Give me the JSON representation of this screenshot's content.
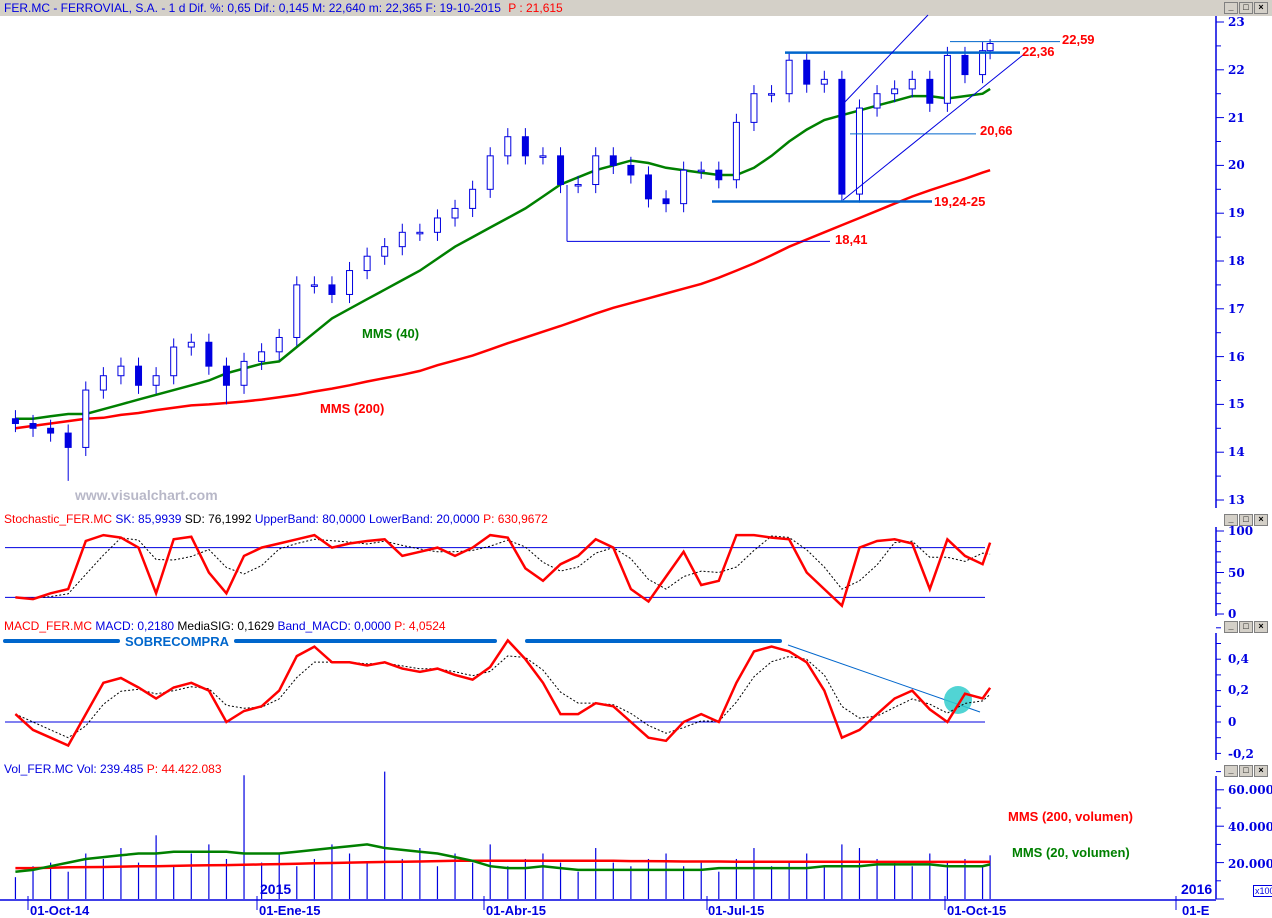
{
  "header": {
    "title": "FER.MC - FERROVIAL, S.A. - 1 d Dif. %: 0,65 Dif.: 0,145 M: 22,640 m: 22,365 F: 19-10-2015",
    "price": "P : 21,615"
  },
  "watermark": "www.visualchart.com",
  "stochastic": {
    "name": "Stochastic_FER.MC",
    "sk": "SK: 85,9939",
    "sd": "SD: 76,1992",
    "upper": "UpperBand: 80,0000",
    "lower": "LowerBand: 20,0000",
    "p": "P: 630,9672"
  },
  "macd": {
    "name": "MACD_FER.MC",
    "macd": "MACD: 0,2180",
    "signal": "MediaSIG: 0,1629",
    "band": "Band_MACD: 0,0000",
    "p": "P: 4,0524",
    "annotation": "SOBRECOMPRA"
  },
  "volume": {
    "name": "Vol_FER.MC",
    "vol": "Vol: 239.485",
    "p": "P: 44.422.083",
    "ma200_label": "MMS (200, volumen)",
    "ma20_label": "MMS (20, volumen)",
    "multiplier": "x100"
  },
  "annotations": {
    "mms40": "MMS (40)",
    "mms200": "MMS (200)",
    "levels": [
      "22,59",
      "22,36",
      "20,66",
      "19,24-25",
      "18,41"
    ]
  },
  "axes": {
    "price_ticks": [
      "23",
      "22",
      "21",
      "20",
      "19",
      "18",
      "17",
      "16",
      "15",
      "14",
      "13"
    ],
    "stoch_ticks": [
      "100",
      "50",
      "0"
    ],
    "macd_ticks": [
      "0,4",
      "0,2",
      "0",
      "-0,2"
    ],
    "vol_ticks": [
      "60.000",
      "40.000",
      "20.000"
    ],
    "x_ticks": [
      "01-Oct-14",
      "01-Ene-15",
      "01-Abr-15",
      "01-Jul-15",
      "01-Oct-15",
      "01-E"
    ],
    "years": [
      "2015",
      "2016"
    ]
  },
  "colors": {
    "candle": "#0000e0",
    "mms40": "#008000",
    "mms200": "#ff0000",
    "annot": "#0066cc",
    "highlight": "#33cccc"
  },
  "chart_data": [
    {
      "type": "candlestick",
      "title": "FER.MC - FERROVIAL, S.A.",
      "ylim": [
        13,
        23
      ],
      "dates": [
        "2014-09-26",
        "2014-10-03",
        "2014-10-10",
        "2014-10-17",
        "2014-10-24",
        "2014-10-31",
        "2014-11-07",
        "2014-11-14",
        "2014-11-21",
        "2014-11-28",
        "2014-12-05",
        "2014-12-12",
        "2014-12-19",
        "2014-12-26",
        "2015-01-02",
        "2015-01-09",
        "2015-01-16",
        "2015-01-23",
        "2015-01-30",
        "2015-02-06",
        "2015-02-13",
        "2015-02-20",
        "2015-02-27",
        "2015-03-06",
        "2015-03-13",
        "2015-03-20",
        "2015-03-27",
        "2015-04-03",
        "2015-04-10",
        "2015-04-17",
        "2015-04-24",
        "2015-05-01",
        "2015-05-08",
        "2015-05-15",
        "2015-05-22",
        "2015-05-29",
        "2015-06-05",
        "2015-06-12",
        "2015-06-19",
        "2015-06-26",
        "2015-07-03",
        "2015-07-10",
        "2015-07-17",
        "2015-07-24",
        "2015-07-31",
        "2015-08-07",
        "2015-08-14",
        "2015-08-21",
        "2015-08-28",
        "2015-09-04",
        "2015-09-11",
        "2015-09-18",
        "2015-09-25",
        "2015-10-02",
        "2015-10-09",
        "2015-10-16",
        "2015-10-19"
      ],
      "close": [
        14.6,
        14.5,
        14.4,
        14.1,
        15.3,
        15.6,
        15.8,
        15.4,
        15.6,
        16.2,
        16.3,
        15.8,
        15.4,
        15.9,
        16.1,
        16.4,
        17.5,
        17.5,
        17.3,
        17.8,
        18.1,
        18.3,
        18.6,
        18.6,
        18.9,
        19.1,
        19.5,
        20.2,
        20.6,
        20.2,
        20.2,
        19.6,
        19.6,
        20.2,
        20.0,
        19.8,
        19.3,
        19.2,
        19.9,
        19.9,
        19.7,
        20.9,
        21.5,
        21.5,
        22.2,
        21.7,
        21.8,
        19.4,
        21.2,
        21.5,
        21.6,
        21.8,
        21.3,
        22.3,
        21.9,
        22.4,
        22.55
      ],
      "series": [
        {
          "name": "MMS (40)",
          "values": [
            14.7,
            14.7,
            14.75,
            14.8,
            14.8,
            14.9,
            15.0,
            15.1,
            15.2,
            15.3,
            15.4,
            15.5,
            15.65,
            15.75,
            15.85,
            15.9,
            16.2,
            16.5,
            16.8,
            17.0,
            17.2,
            17.4,
            17.6,
            17.8,
            18.05,
            18.3,
            18.5,
            18.7,
            18.9,
            19.1,
            19.35,
            19.6,
            19.75,
            19.9,
            20.0,
            20.1,
            20.05,
            19.95,
            19.9,
            19.85,
            19.8,
            19.8,
            19.95,
            20.2,
            20.5,
            20.75,
            20.95,
            21.05,
            21.15,
            21.25,
            21.35,
            21.45,
            21.45,
            21.4,
            21.45,
            21.5,
            21.6
          ]
        },
        {
          "name": "MMS (200)",
          "values": [
            14.5,
            14.55,
            14.6,
            14.65,
            14.7,
            14.72,
            14.78,
            14.82,
            14.88,
            14.93,
            14.98,
            15.0,
            15.03,
            15.06,
            15.1,
            15.15,
            15.2,
            15.27,
            15.33,
            15.4,
            15.48,
            15.55,
            15.62,
            15.7,
            15.82,
            15.92,
            16.02,
            16.15,
            16.28,
            16.4,
            16.52,
            16.64,
            16.77,
            16.9,
            17.02,
            17.12,
            17.22,
            17.32,
            17.42,
            17.52,
            17.65,
            17.8,
            17.95,
            18.12,
            18.3,
            18.45,
            18.6,
            18.75,
            18.9,
            19.05,
            19.2,
            19.35,
            19.48,
            19.6,
            19.72,
            19.85,
            19.9
          ]
        }
      ],
      "levels": [
        22.59,
        22.36,
        20.66,
        19.245,
        18.41
      ]
    },
    {
      "type": "line",
      "title": "Stochastic_FER.MC",
      "ylim": [
        0,
        100
      ],
      "bands": [
        80,
        20
      ],
      "sk": [
        20,
        18,
        25,
        30,
        88,
        95,
        92,
        80,
        25,
        90,
        93,
        50,
        25,
        70,
        80,
        85,
        90,
        95,
        80,
        85,
        88,
        90,
        70,
        75,
        80,
        70,
        80,
        95,
        92,
        55,
        40,
        60,
        70,
        90,
        80,
        30,
        15,
        45,
        75,
        35,
        40,
        95,
        95,
        92,
        90,
        50,
        30,
        10,
        80,
        88,
        90,
        85,
        30,
        90,
        70,
        60,
        86
      ]
    },
    {
      "type": "line",
      "title": "MACD_FER.MC",
      "ylim": [
        -0.25,
        0.55
      ],
      "macd": [
        0.05,
        -0.05,
        -0.1,
        -0.15,
        0.05,
        0.25,
        0.28,
        0.22,
        0.15,
        0.22,
        0.25,
        0.2,
        0.0,
        0.07,
        0.1,
        0.2,
        0.42,
        0.48,
        0.38,
        0.38,
        0.36,
        0.38,
        0.34,
        0.32,
        0.34,
        0.3,
        0.27,
        0.35,
        0.52,
        0.4,
        0.25,
        0.05,
        0.05,
        0.12,
        0.1,
        0.0,
        -0.1,
        -0.12,
        0.0,
        0.05,
        0.0,
        0.25,
        0.45,
        0.48,
        0.45,
        0.38,
        0.2,
        -0.1,
        -0.05,
        0.05,
        0.15,
        0.2,
        0.08,
        0.0,
        0.18,
        0.15,
        0.218
      ]
    },
    {
      "type": "bar",
      "title": "Vol_FER.MC",
      "ylim": [
        0,
        70
      ],
      "unit": "x100",
      "volume": [
        12,
        18,
        20,
        15,
        25,
        22,
        28,
        20,
        35,
        18,
        25,
        30,
        22,
        68,
        20,
        25,
        18,
        22,
        30,
        25,
        20,
        70,
        22,
        28,
        18,
        25,
        20,
        30,
        18,
        22,
        25,
        20,
        15,
        28,
        20,
        18,
        22,
        25,
        18,
        20,
        15,
        22,
        28,
        18,
        20,
        25,
        18,
        30,
        28,
        22,
        20,
        18,
        25,
        20,
        22,
        18,
        24
      ],
      "series": [
        {
          "name": "MMS (20, volumen)",
          "values": [
            15,
            16,
            18,
            20,
            22,
            23,
            24,
            25,
            25,
            26,
            26,
            26,
            26,
            25,
            25,
            25,
            26,
            27,
            28,
            29,
            30,
            28,
            27,
            26,
            25,
            23,
            21,
            18,
            17,
            17,
            18,
            17,
            16,
            16,
            16,
            16,
            16,
            16,
            16,
            16,
            17,
            17,
            17,
            17,
            17,
            17,
            18,
            18,
            18,
            19,
            19,
            19,
            19,
            18,
            18,
            18,
            19
          ]
        },
        {
          "name": "MMS (200, volumen)",
          "values": [
            17,
            17,
            17.2,
            17.4,
            17.5,
            17.6,
            17.8,
            18,
            18,
            18.2,
            18.4,
            18.5,
            18.6,
            18.8,
            19,
            19.2,
            19.4,
            19.6,
            19.8,
            20,
            20.2,
            20.4,
            20.5,
            20.6,
            20.8,
            21,
            21,
            21,
            21,
            21,
            21,
            21,
            21,
            21,
            21,
            20.8,
            20.8,
            20.7,
            20.6,
            20.6,
            20.6,
            20.5,
            20.5,
            20.5,
            20.5,
            20.5,
            20.5,
            20.5,
            20.5,
            20.4,
            20.4,
            20.4,
            20.4,
            20.4,
            20.4,
            20.4,
            20.4
          ]
        }
      ]
    }
  ]
}
